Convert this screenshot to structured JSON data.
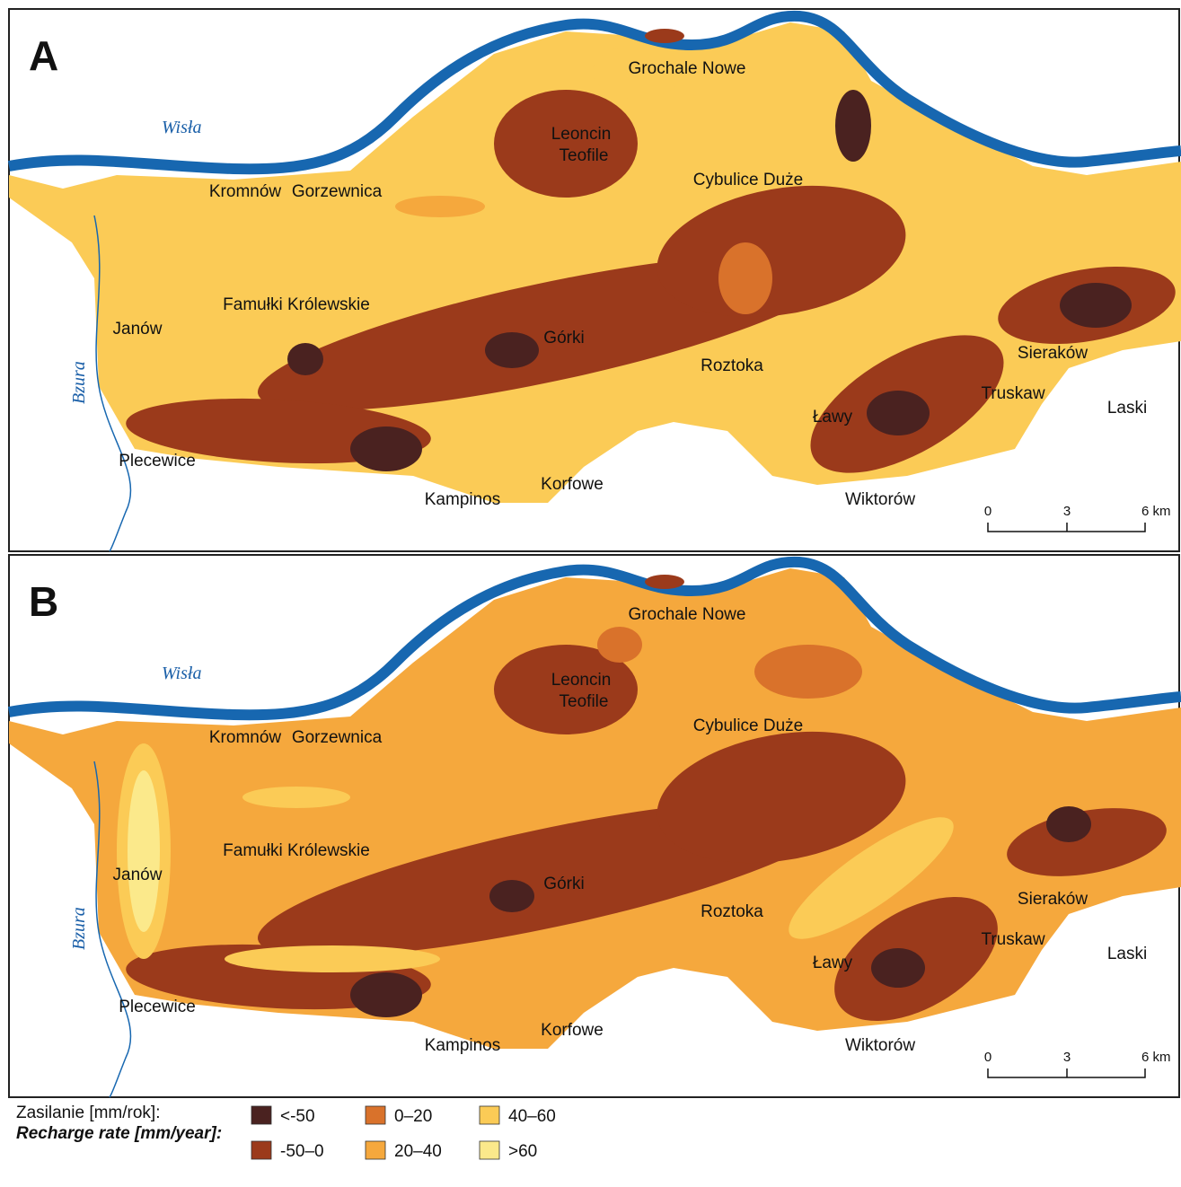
{
  "panels": [
    {
      "label": "A"
    },
    {
      "label": "B"
    }
  ],
  "places": [
    "Grochale Nowe",
    "Leoncin",
    "Teofile",
    "Kromnów",
    "Gorzewnica",
    "Cybulice Duże",
    "Famułki Królewskie",
    "Janów",
    "Górki",
    "Roztoka",
    "Sieraków",
    "Truskaw",
    "Laski",
    "Ławy",
    "Plecewice",
    "Korfowe",
    "Kampinos",
    "Wiktorów"
  ],
  "rivers": [
    "Wisła",
    "Bzura"
  ],
  "scale_bar": [
    "0",
    "3",
    "6 km"
  ],
  "legend": {
    "title": "Zasilanie [mm/rok]:",
    "subtitle": "Recharge rate [mm/year]:",
    "items": [
      {
        "label": "<-50",
        "color": "#4a2220"
      },
      {
        "label": "-50–0",
        "color": "#9b3a1b"
      },
      {
        "label": "0–20",
        "color": "#d9722b"
      },
      {
        "label": "20–40",
        "color": "#f5a83d"
      },
      {
        "label": "40–60",
        "color": "#fbcb56"
      },
      {
        "label": ">60",
        "color": "#fbe98b"
      }
    ]
  }
}
